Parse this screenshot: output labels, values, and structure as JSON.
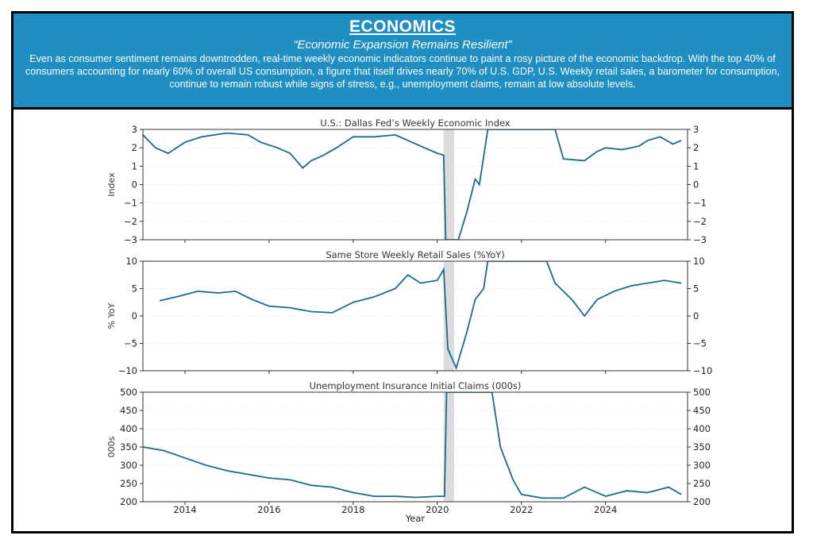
{
  "header": {
    "title": "ECONOMICS",
    "subtitle": "“Economic Expansion Remains Resilient”",
    "body": "Even as consumer sentiment remains downtrodden, real-time weekly economic indicators continue to paint a rosy picture of the economic backdrop. With the top 40% of consumers accounting for nearly 60% of overall US consumption, a figure that itself drives nearly 70% of U.S. GDP, U.S. Weekly retail sales, a barometer for consumption, continue to remain robust while signs of stress, e.g., unemployment claims, remain at low absolute levels."
  },
  "colors": {
    "header_bg": "#1f8fc3",
    "line": "#1a6a8e",
    "recession": "#dcdcdc"
  },
  "chart_data": [
    {
      "type": "line",
      "title": "U.S.: Dallas Fed’s Weekly Economic Index",
      "ylabel": "Index",
      "xlabel": "",
      "ylim": [
        -3,
        3
      ],
      "yticks": [
        -3,
        -2,
        -1,
        0,
        1,
        2,
        3
      ],
      "xlim": [
        2013,
        2025.95
      ],
      "shaded": [
        2020.15,
        2020.4
      ],
      "x": [
        2013.0,
        2013.3,
        2013.6,
        2014.0,
        2014.4,
        2014.7,
        2015.0,
        2015.5,
        2015.8,
        2016.2,
        2016.5,
        2016.8,
        2017.0,
        2017.3,
        2017.6,
        2018.0,
        2018.5,
        2019.0,
        2019.3,
        2019.6,
        2020.0,
        2020.15,
        2020.2,
        2020.5,
        2020.7,
        2020.9,
        2021.0,
        2021.1,
        2021.2,
        2022.8,
        2023.0,
        2023.5,
        2023.8,
        2024.0,
        2024.4,
        2024.8,
        2025.0,
        2025.3,
        2025.6,
        2025.8
      ],
      "y": [
        2.7,
        2.0,
        1.7,
        2.3,
        2.6,
        2.7,
        2.8,
        2.7,
        2.3,
        2.0,
        1.7,
        0.9,
        1.3,
        1.6,
        2.0,
        2.6,
        2.6,
        2.7,
        2.4,
        2.1,
        1.7,
        1.6,
        -3,
        -3,
        -1.5,
        0.3,
        0.0,
        1.5,
        3,
        3,
        1.4,
        1.3,
        1.8,
        2.0,
        1.9,
        2.1,
        2.4,
        2.6,
        2.2,
        2.4
      ]
    },
    {
      "type": "line",
      "title": "Same Store Weekly Retail Sales (%YoY)",
      "ylabel": "% YoY",
      "xlabel": "",
      "ylim": [
        -10,
        10
      ],
      "yticks": [
        -10,
        -5,
        0,
        5,
        10
      ],
      "xlim": [
        2013,
        2025.95
      ],
      "shaded": [
        2020.15,
        2020.4
      ],
      "x": [
        2013.4,
        2013.8,
        2014.3,
        2014.8,
        2015.2,
        2015.6,
        2016.0,
        2016.5,
        2017.0,
        2017.5,
        2018.0,
        2018.5,
        2019.0,
        2019.3,
        2019.6,
        2020.0,
        2020.15,
        2020.25,
        2020.45,
        2020.7,
        2020.9,
        2021.1,
        2021.2,
        2022.6,
        2022.8,
        2023.2,
        2023.5,
        2023.8,
        2024.2,
        2024.6,
        2025.0,
        2025.4,
        2025.8
      ],
      "y": [
        2.8,
        3.5,
        4.5,
        4.2,
        4.5,
        3.0,
        1.8,
        1.5,
        0.8,
        0.6,
        2.5,
        3.5,
        5.0,
        7.5,
        6.0,
        6.5,
        8.5,
        -6,
        -9.5,
        -3,
        3,
        5,
        10,
        10,
        6,
        3,
        0,
        3,
        4.5,
        5.5,
        6,
        6.5,
        6
      ]
    },
    {
      "type": "line",
      "title": "Unemployment Insurance Initial Claims (000s)",
      "ylabel": "000s",
      "xlabel": "Year",
      "ylim": [
        200,
        500
      ],
      "yticks": [
        200,
        250,
        300,
        350,
        400,
        450,
        500
      ],
      "xlim": [
        2013,
        2025.95
      ],
      "xticks": [
        2014,
        2016,
        2018,
        2020,
        2022,
        2024
      ],
      "shaded": [
        2020.15,
        2020.4
      ],
      "x": [
        2013.0,
        2013.5,
        2014.0,
        2014.5,
        2015.0,
        2015.5,
        2016.0,
        2016.5,
        2017.0,
        2017.5,
        2018.0,
        2018.5,
        2019.0,
        2019.5,
        2020.0,
        2020.17,
        2020.22,
        2021.3,
        2021.5,
        2021.8,
        2022.0,
        2022.5,
        2023.0,
        2023.5,
        2024.0,
        2024.5,
        2025.0,
        2025.5,
        2025.8
      ],
      "y": [
        350,
        340,
        320,
        300,
        285,
        275,
        265,
        260,
        245,
        240,
        225,
        215,
        215,
        212,
        215,
        215,
        500,
        500,
        350,
        260,
        220,
        210,
        210,
        240,
        215,
        230,
        225,
        240,
        220
      ]
    }
  ]
}
